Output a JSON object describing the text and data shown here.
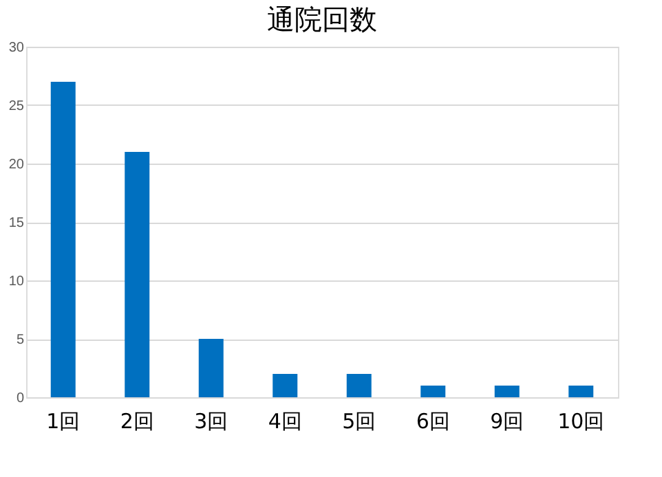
{
  "chart_data": {
    "type": "bar",
    "title": "通院回数",
    "categories": [
      "1回",
      "2回",
      "3回",
      "4回",
      "5回",
      "6回",
      "9回",
      "10回"
    ],
    "values": [
      27,
      21,
      5,
      2,
      2,
      1,
      1,
      1
    ],
    "color": "#0070c0",
    "ylim": [
      0,
      30
    ],
    "yticks": [
      0,
      5,
      10,
      15,
      20,
      25,
      30
    ],
    "grid": "y"
  }
}
